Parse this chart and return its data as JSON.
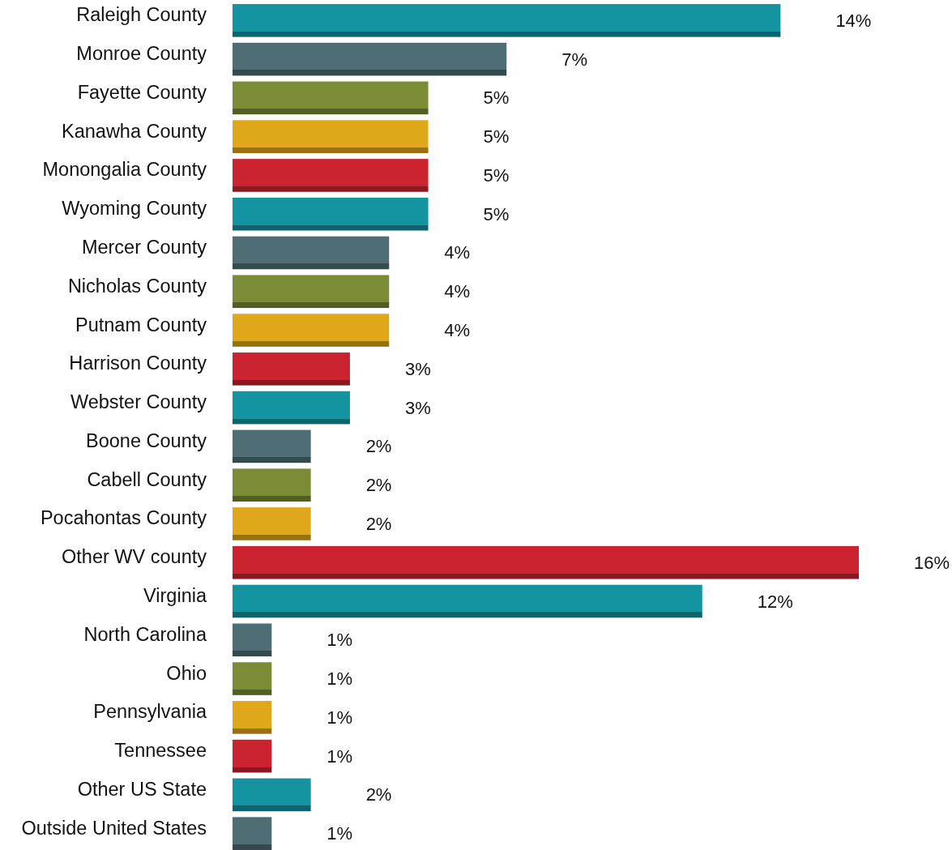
{
  "chart_data": {
    "type": "bar",
    "orientation": "horizontal",
    "categories": [
      "Raleigh County",
      "Monroe County",
      "Fayette County",
      "Kanawha County",
      "Monongalia County",
      "Wyoming County",
      "Mercer County",
      "Nicholas County",
      "Putnam County",
      "Harrison County",
      "Webster County",
      "Boone County",
      "Cabell County",
      "Pocahontas County",
      "Other WV county",
      "Virginia",
      "North Carolina",
      "Ohio",
      "Pennsylvania",
      "Tennessee",
      "Other US State",
      "Outside United States"
    ],
    "values": [
      14,
      7,
      5,
      5,
      5,
      5,
      4,
      4,
      4,
      3,
      3,
      2,
      2,
      2,
      16,
      12,
      1,
      1,
      1,
      1,
      2,
      1
    ],
    "value_labels": [
      "14%",
      "7%",
      "5%",
      "5%",
      "5%",
      "5%",
      "4%",
      "4%",
      "4%",
      "3%",
      "3%",
      "2%",
      "2%",
      "2%",
      "16%",
      "12%",
      "1%",
      "1%",
      "1%",
      "1%",
      "2%",
      "1%"
    ],
    "colors": [
      "#1394a0",
      "#4e6d75",
      "#7a8c36",
      "#dfa81b",
      "#cb232f",
      "#1394a0",
      "#4e6d75",
      "#7a8c36",
      "#dfa81b",
      "#cb232f",
      "#1394a0",
      "#4e6d75",
      "#7a8c36",
      "#dfa81b",
      "#cb232f",
      "#1394a0",
      "#4e6d75",
      "#7a8c36",
      "#dfa81b",
      "#cb232f",
      "#1394a0",
      "#4e6d75"
    ],
    "tick_labels": "y"
  }
}
